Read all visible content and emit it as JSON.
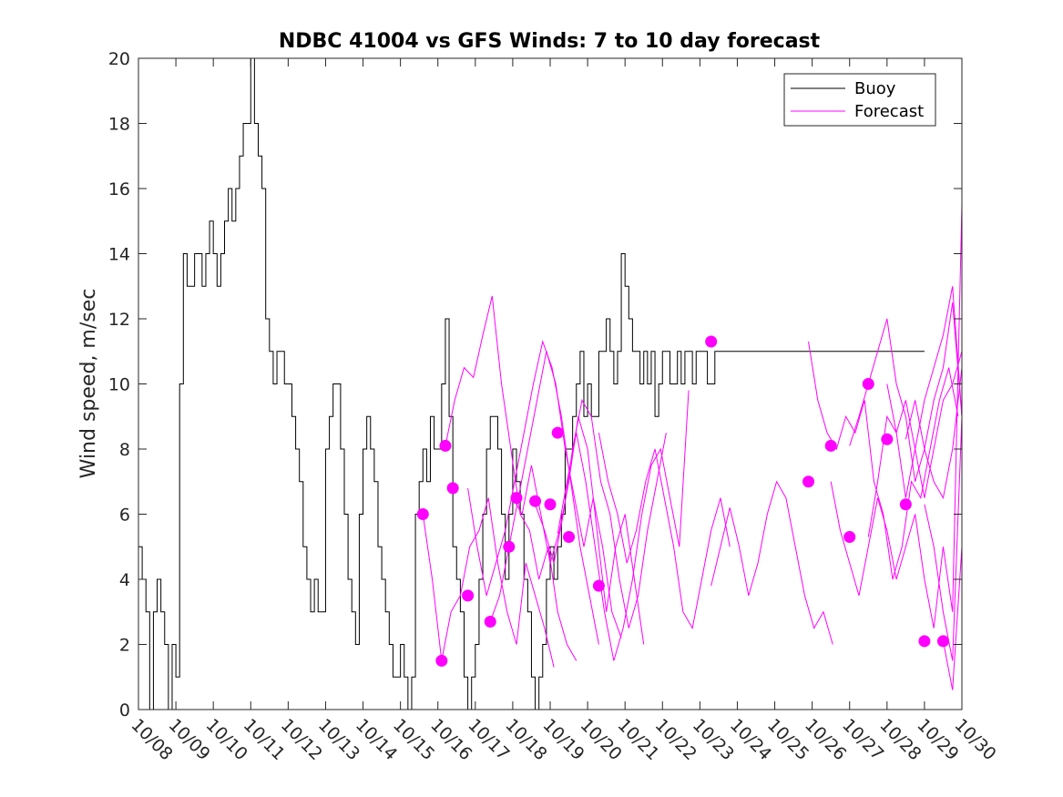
{
  "chart_data": {
    "type": "line",
    "title": "NDBC 41004 vs GFS Winds: 7 to 10 day forecast",
    "xlabel": "",
    "ylabel": "Wind speed, m/sec",
    "xlim": [
      0,
      22
    ],
    "ylim": [
      0,
      20
    ],
    "x_tick_labels": [
      "10/08",
      "10/09",
      "10/10",
      "10/11",
      "10/12",
      "10/13",
      "10/14",
      "10/15",
      "10/16",
      "10/17",
      "10/18",
      "10/19",
      "10/20",
      "10/21",
      "10/22",
      "10/23",
      "10/24",
      "10/25",
      "10/26",
      "10/27",
      "10/28",
      "10/29",
      "10/30"
    ],
    "y_ticks": [
      0,
      2,
      4,
      6,
      8,
      10,
      12,
      14,
      16,
      18,
      20
    ],
    "grid": false,
    "legend": {
      "position": "top-right",
      "entries": [
        {
          "name": "Buoy",
          "color": "#000000"
        },
        {
          "name": "Forecast",
          "color": "#ff00ff"
        }
      ]
    },
    "colors": {
      "buoy": "#000000",
      "forecast": "#ff00ff"
    },
    "series": [
      {
        "name": "Buoy",
        "style": "step",
        "x": [
          0.0,
          0.1,
          0.2,
          0.3,
          0.4,
          0.5,
          0.6,
          0.7,
          0.8,
          0.9,
          1.0,
          1.1,
          1.2,
          1.3,
          1.4,
          1.5,
          1.6,
          1.7,
          1.8,
          1.9,
          2.0,
          2.1,
          2.2,
          2.3,
          2.4,
          2.5,
          2.6,
          2.7,
          2.8,
          2.9,
          3.0,
          3.1,
          3.2,
          3.3,
          3.4,
          3.5,
          3.6,
          3.7,
          3.8,
          3.9,
          4.0,
          4.1,
          4.2,
          4.3,
          4.4,
          4.5,
          4.6,
          4.7,
          4.8,
          4.9,
          5.0,
          5.1,
          5.2,
          5.3,
          5.4,
          5.5,
          5.6,
          5.7,
          5.8,
          5.9,
          6.0,
          6.1,
          6.2,
          6.3,
          6.4,
          6.5,
          6.6,
          6.7,
          6.8,
          6.9,
          7.0,
          7.1,
          7.2,
          7.3,
          7.4,
          7.5,
          7.6,
          7.7,
          7.8,
          7.9,
          8.0,
          8.1,
          8.2,
          8.3,
          8.4,
          8.5,
          8.6,
          8.7,
          8.8,
          8.9,
          9.0,
          9.1,
          9.2,
          9.3,
          9.4,
          9.5,
          9.6,
          9.7,
          9.8,
          9.9,
          10.0,
          10.1,
          10.2,
          10.3,
          10.4,
          10.5,
          10.6,
          10.7,
          10.8,
          10.9,
          11.0,
          11.1,
          11.2,
          11.3,
          11.4,
          11.5,
          11.6,
          11.7,
          11.8,
          11.9,
          12.0,
          12.1,
          12.2,
          12.3,
          12.4,
          12.5,
          12.6,
          12.7,
          12.8,
          12.9,
          13.0,
          13.1,
          13.2,
          13.3,
          13.4,
          13.5,
          13.6,
          13.7,
          13.8,
          13.9,
          14.0,
          14.1,
          14.2,
          14.3,
          14.4,
          14.5,
          14.6,
          14.7,
          14.8,
          14.9,
          15.0,
          15.1,
          15.2,
          15.3,
          15.4,
          15.5,
          15.6,
          15.7,
          15.8,
          15.9,
          16.0,
          16.1,
          16.2,
          16.3,
          16.4,
          16.5,
          16.6,
          16.7,
          16.8,
          16.9,
          17.0,
          17.1,
          17.2,
          17.3,
          17.4,
          17.5,
          17.6,
          17.7,
          17.8,
          17.9,
          18.0,
          18.1,
          18.2,
          18.3,
          18.4,
          18.5,
          18.6,
          18.7,
          18.8,
          18.9,
          19.0,
          19.1,
          19.2,
          19.3,
          19.4,
          19.5,
          19.6,
          19.7,
          19.8,
          19.9,
          20.0,
          20.1,
          20.2,
          20.3,
          20.4,
          20.5,
          20.6,
          20.7,
          20.8,
          20.9,
          21.0
        ],
        "values": [
          5,
          4,
          3,
          0,
          3,
          4,
          3,
          2,
          0,
          2,
          1,
          10,
          14,
          13,
          13,
          14,
          14,
          13,
          14,
          15,
          14,
          13,
          14,
          15,
          16,
          15,
          16,
          17,
          18,
          18,
          20,
          18,
          17,
          16,
          12,
          11,
          10,
          11,
          11,
          10,
          10,
          9,
          8,
          7,
          5,
          4,
          3,
          4,
          3,
          3,
          8,
          9,
          10,
          10,
          8,
          6,
          4,
          3,
          2,
          6,
          8,
          9,
          8,
          7,
          5,
          4,
          3,
          2,
          1,
          1,
          2,
          1,
          0,
          1,
          6,
          7,
          8,
          7,
          9,
          8,
          8,
          10,
          12,
          9,
          5,
          4,
          3,
          1,
          0,
          1,
          2,
          4,
          6,
          8,
          9,
          9,
          8,
          6,
          4,
          6,
          8,
          7,
          6,
          4,
          3,
          1,
          0,
          1,
          2,
          4,
          5,
          4,
          5,
          6,
          8,
          8,
          9,
          10,
          11,
          9,
          10,
          9,
          9,
          11,
          11,
          12,
          11,
          10,
          11,
          14,
          13,
          12,
          11,
          11,
          10,
          11,
          10,
          11,
          9,
          10,
          11,
          11,
          10,
          10,
          11,
          10,
          11,
          11,
          10,
          11,
          11,
          11,
          10,
          10,
          11,
          11,
          11,
          11,
          11,
          11,
          11,
          11,
          11,
          11,
          11,
          11,
          11,
          11,
          11,
          11,
          11,
          11,
          11,
          11,
          11,
          11,
          11,
          11,
          11,
          11,
          11,
          11,
          11,
          11,
          11,
          11,
          11,
          11,
          11,
          11,
          11,
          11,
          11,
          11,
          11,
          11,
          11,
          11,
          11,
          11,
          11,
          11,
          11,
          11,
          11,
          11,
          11,
          11,
          11,
          11,
          11
        ]
      },
      {
        "name": "Forecast",
        "x": [
          7.6,
          7.85,
          8.1,
          8.35,
          8.6,
          8.85,
          9.1,
          9.35,
          9.6,
          9.85,
          10.1,
          10.35,
          10.6,
          10.85,
          11.1
        ],
        "values": [
          6.0,
          4.0,
          1.5,
          3.0,
          3.5,
          5.0,
          5.5,
          6.5,
          4.5,
          3.0,
          2.0,
          4.5,
          3.5,
          2.5,
          1.3
        ]
      },
      {
        "name": "Forecast",
        "x": [
          8.2,
          8.45,
          8.7,
          8.95,
          9.2,
          9.45,
          9.7,
          9.95,
          10.2,
          10.45,
          10.7,
          10.95,
          11.2,
          11.45,
          11.7
        ],
        "values": [
          8.1,
          9.5,
          10.5,
          10.2,
          11.5,
          12.7,
          10.0,
          8.0,
          6.0,
          5.5,
          4.0,
          5.0,
          3.0,
          2.0,
          1.5
        ]
      },
      {
        "name": "Forecast",
        "x": [
          8.8,
          9.05,
          9.3,
          9.55,
          9.8,
          10.05,
          10.3,
          10.55,
          10.8,
          11.05,
          11.3,
          11.55,
          11.8,
          12.05,
          12.3
        ],
        "values": [
          6.8,
          5.0,
          3.5,
          4.5,
          5.5,
          7.0,
          8.5,
          10.0,
          11.3,
          10.5,
          9.0,
          7.0,
          5.0,
          3.5,
          2.0
        ]
      },
      {
        "name": "Forecast",
        "x": [
          9.4,
          9.65,
          9.9,
          10.15,
          10.4,
          10.65,
          10.9,
          11.15,
          11.4,
          11.65,
          11.9,
          12.15,
          12.4,
          12.65,
          12.9
        ],
        "values": [
          2.7,
          3.5,
          5.0,
          6.5,
          8.0,
          9.5,
          11.0,
          10.0,
          8.0,
          6.5,
          5.0,
          6.5,
          5.0,
          3.0,
          2.2
        ]
      },
      {
        "name": "Forecast",
        "x": [
          10.0,
          10.25,
          10.5,
          10.75,
          11.0,
          11.25,
          11.5,
          11.75,
          12.0,
          12.25,
          12.5,
          12.75,
          13.0,
          13.25,
          13.5
        ],
        "values": [
          6.5,
          6.0,
          7.5,
          6.0,
          4.5,
          5.5,
          7.0,
          9.0,
          8.0,
          5.5,
          3.0,
          5.0,
          6.0,
          4.0,
          2.0
        ]
      },
      {
        "name": "Forecast",
        "x": [
          10.6,
          10.85,
          11.1,
          11.35,
          11.6,
          11.85,
          12.1,
          12.35,
          12.6,
          12.85,
          13.1,
          13.35,
          13.6,
          13.85,
          14.1
        ],
        "values": [
          6.3,
          5.5,
          4.5,
          6.0,
          8.0,
          9.5,
          9.0,
          7.0,
          6.0,
          4.0,
          2.5,
          3.5,
          5.5,
          7.0,
          8.5
        ]
      },
      {
        "name": "Forecast",
        "x": [
          11.2,
          11.45,
          11.7,
          11.95,
          12.2,
          12.45,
          12.7,
          12.95,
          13.2,
          13.45,
          13.7,
          13.95,
          14.2,
          14.45,
          14.7
        ],
        "values": [
          5.4,
          7.0,
          8.5,
          7.0,
          5.0,
          3.0,
          1.5,
          2.5,
          4.0,
          6.0,
          7.5,
          8.0,
          6.5,
          5.0,
          9.8
        ]
      },
      {
        "name": "Forecast",
        "x": [
          12.3,
          12.55,
          12.8,
          13.05,
          13.3,
          13.55,
          13.8,
          14.05,
          14.3,
          14.55,
          14.8,
          15.05,
          15.3,
          15.55,
          15.8
        ],
        "values": [
          8.5,
          7.0,
          6.0,
          4.5,
          5.5,
          7.0,
          8.0,
          6.5,
          5.0,
          3.0,
          2.5,
          4.0,
          5.5,
          6.5,
          5.0
        ]
      },
      {
        "name": "Forecast",
        "x": [
          15.3,
          15.55,
          15.8,
          16.05,
          16.3,
          16.55,
          16.8,
          17.05,
          17.3,
          17.55,
          17.8,
          18.05,
          18.3,
          18.55
        ],
        "values": [
          3.8,
          5.0,
          6.2,
          5.0,
          3.5,
          4.5,
          6.0,
          7.0,
          6.5,
          5.0,
          3.5,
          2.5,
          3.0,
          2.0
        ]
      },
      {
        "name": "Forecast",
        "x": [
          17.9,
          18.15,
          18.4,
          18.65,
          18.9,
          19.15,
          19.4,
          19.65,
          19.9,
          20.15,
          20.4,
          20.65,
          20.9,
          21.15,
          21.4,
          21.65,
          21.9
        ],
        "values": [
          11.3,
          9.5,
          8.5,
          8.0,
          9.0,
          8.5,
          9.5,
          7.0,
          6.0,
          4.0,
          5.0,
          7.0,
          6.5,
          8.0,
          9.5,
          10.5,
          9.0
        ]
      },
      {
        "name": "Forecast",
        "x": [
          18.5,
          18.75,
          19.0,
          19.25,
          19.5,
          19.75,
          20.0,
          20.25,
          20.5,
          20.75,
          21.0,
          21.25,
          21.5,
          21.75,
          22.0
        ],
        "values": [
          7.0,
          5.5,
          4.5,
          3.5,
          5.0,
          6.5,
          5.5,
          4.0,
          5.0,
          6.0,
          4.0,
          2.5,
          5.0,
          3.0,
          15.5
        ]
      },
      {
        "name": "Forecast",
        "x": [
          19.0,
          19.25,
          19.5,
          19.75,
          20.0,
          20.25,
          20.5,
          20.75,
          21.0,
          21.25,
          21.5,
          21.75,
          22.0
        ],
        "values": [
          8.1,
          9.0,
          10.0,
          11.0,
          12.0,
          10.0,
          9.0,
          7.0,
          8.0,
          9.5,
          10.5,
          12.5,
          9.0
        ]
      },
      {
        "name": "Forecast",
        "x": [
          19.5,
          19.75,
          20.0,
          20.25,
          20.5,
          20.75,
          21.0,
          21.25,
          21.5,
          21.75,
          22.0
        ],
        "values": [
          5.3,
          7.0,
          9.0,
          8.5,
          6.5,
          8.0,
          9.5,
          10.5,
          11.5,
          13.0,
          9.0
        ]
      },
      {
        "name": "Forecast",
        "x": [
          20.0,
          20.25,
          20.5,
          20.75,
          21.0,
          21.25,
          21.5,
          21.75,
          22.0
        ],
        "values": [
          10.0,
          8.5,
          9.5,
          8.0,
          6.5,
          8.0,
          9.5,
          10.0,
          11.0
        ]
      },
      {
        "name": "Forecast",
        "x": [
          20.5,
          20.75,
          21.0,
          21.25,
          21.5,
          21.75,
          22.0
        ],
        "values": [
          8.3,
          9.5,
          8.0,
          7.0,
          6.5,
          8.0,
          10.5
        ]
      },
      {
        "name": "Forecast",
        "x": [
          21.0,
          21.25,
          21.5,
          21.75,
          22.0
        ],
        "values": [
          6.3,
          5.0,
          3.0,
          1.5,
          9.0
        ]
      },
      {
        "name": "Forecast",
        "x": [
          21.5,
          21.75,
          22.0
        ],
        "values": [
          2.1,
          0.6,
          5.0
        ]
      }
    ],
    "forecast_markers": {
      "x": [
        7.6,
        8.1,
        8.2,
        8.4,
        8.8,
        9.4,
        9.9,
        10.1,
        10.6,
        11.0,
        11.2,
        11.5,
        12.3,
        15.3,
        17.9,
        18.5,
        19.0,
        19.5,
        20.0,
        20.5,
        21.0,
        21.5
      ],
      "values": [
        6.0,
        1.5,
        8.1,
        6.8,
        3.5,
        2.7,
        5.0,
        6.5,
        6.4,
        6.3,
        8.5,
        5.3,
        3.8,
        11.3,
        7.0,
        8.1,
        5.3,
        10.0,
        8.3,
        6.3,
        2.1,
        2.1
      ]
    }
  }
}
